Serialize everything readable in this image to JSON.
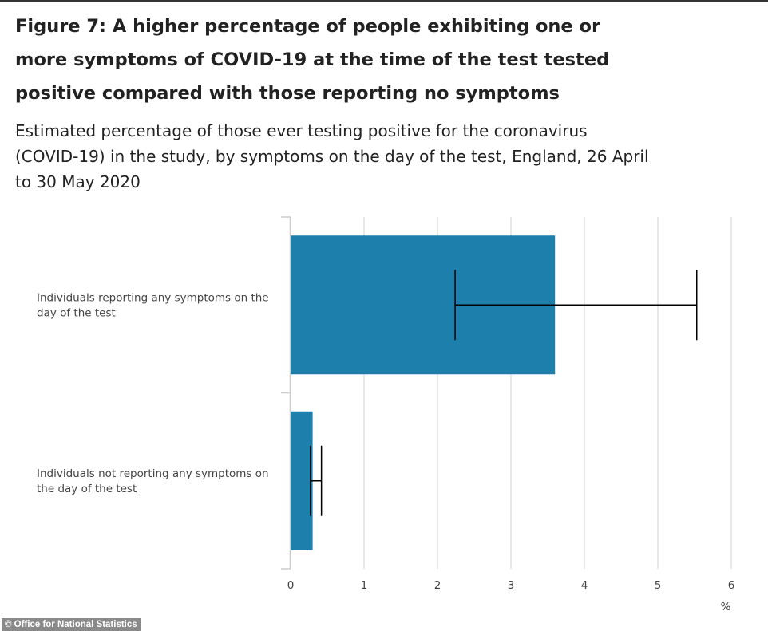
{
  "title": "Figure 7: A higher percentage of people exhibiting one or more symptoms of COVID-19 at the time of the test tested positive compared with those reporting no symptoms",
  "subtitle": "Estimated percentage of those ever testing positive for the coronavirus (COVID-19) in the study, by symptoms on the day of the test, England, 26 April to 30 May 2020",
  "credit": "© Office for National Statistics",
  "colors": {
    "bar": "#1d7fac",
    "grid": "#e0e0e0",
    "axis": "#cccccc",
    "error_bar": "#000000"
  },
  "chart_data": {
    "type": "bar",
    "orientation": "horizontal",
    "categories": [
      [
        "Individuals reporting any symptoms on the",
        "day of the test"
      ],
      [
        "Individuals not reporting any symptoms on",
        "the day of the test"
      ]
    ],
    "values": [
      3.6,
      0.3
    ],
    "error_bars": [
      {
        "lower": 2.24,
        "upper": 5.53
      },
      {
        "lower": 0.27,
        "upper": 0.42
      }
    ],
    "xlim": [
      0,
      6
    ],
    "xticks": [
      "0",
      "1",
      "2",
      "3",
      "4",
      "5",
      "6"
    ],
    "xunit": "%",
    "grid": "vertical",
    "legend": "none"
  }
}
